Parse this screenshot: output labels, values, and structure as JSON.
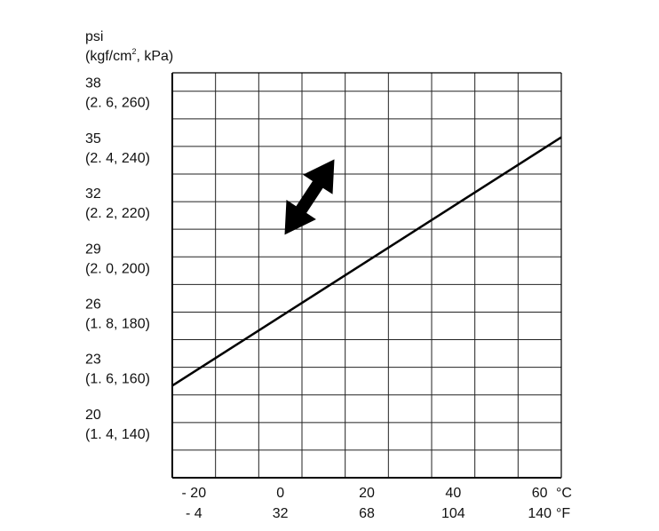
{
  "chart_data": {
    "type": "line",
    "ylabel": "psi",
    "ylabel_units_base": "(kgf/cm",
    "ylabel_units_sup": "2",
    "ylabel_units_rest": ", kPa)",
    "x_units": [
      "°C",
      "°F"
    ],
    "xlim": [
      -25,
      65
    ],
    "ylim": [
      17,
      39
    ],
    "x_ticks": [
      {
        "c": "- 20",
        "f": "- 4"
      },
      {
        "c": "0",
        "f": "32"
      },
      {
        "c": "20",
        "f": "68"
      },
      {
        "c": "40",
        "f": "104"
      },
      {
        "c": "60",
        "f": "140"
      }
    ],
    "y_ticks": [
      {
        "psi": "38",
        "alt": "(2. 6, 260)"
      },
      {
        "psi": "35",
        "alt": "(2. 4, 240)"
      },
      {
        "psi": "32",
        "alt": "(2. 2, 220)"
      },
      {
        "psi": "29",
        "alt": "(2. 0, 200)"
      },
      {
        "psi": "26",
        "alt": "(1. 8, 180)"
      },
      {
        "psi": "23",
        "alt": "(1. 6, 160)"
      },
      {
        "psi": "20",
        "alt": "(1. 4, 140)"
      }
    ],
    "series": [
      {
        "values": [
          {
            "x": -25,
            "y": 22
          },
          {
            "x": 65,
            "y": 35.5
          }
        ]
      }
    ],
    "annotations": [
      {
        "type": "double-arrow",
        "from": {
          "x": 1,
          "y": 30.2
        },
        "to": {
          "x": 12.5,
          "y": 34.3
        }
      }
    ],
    "grid": true
  }
}
